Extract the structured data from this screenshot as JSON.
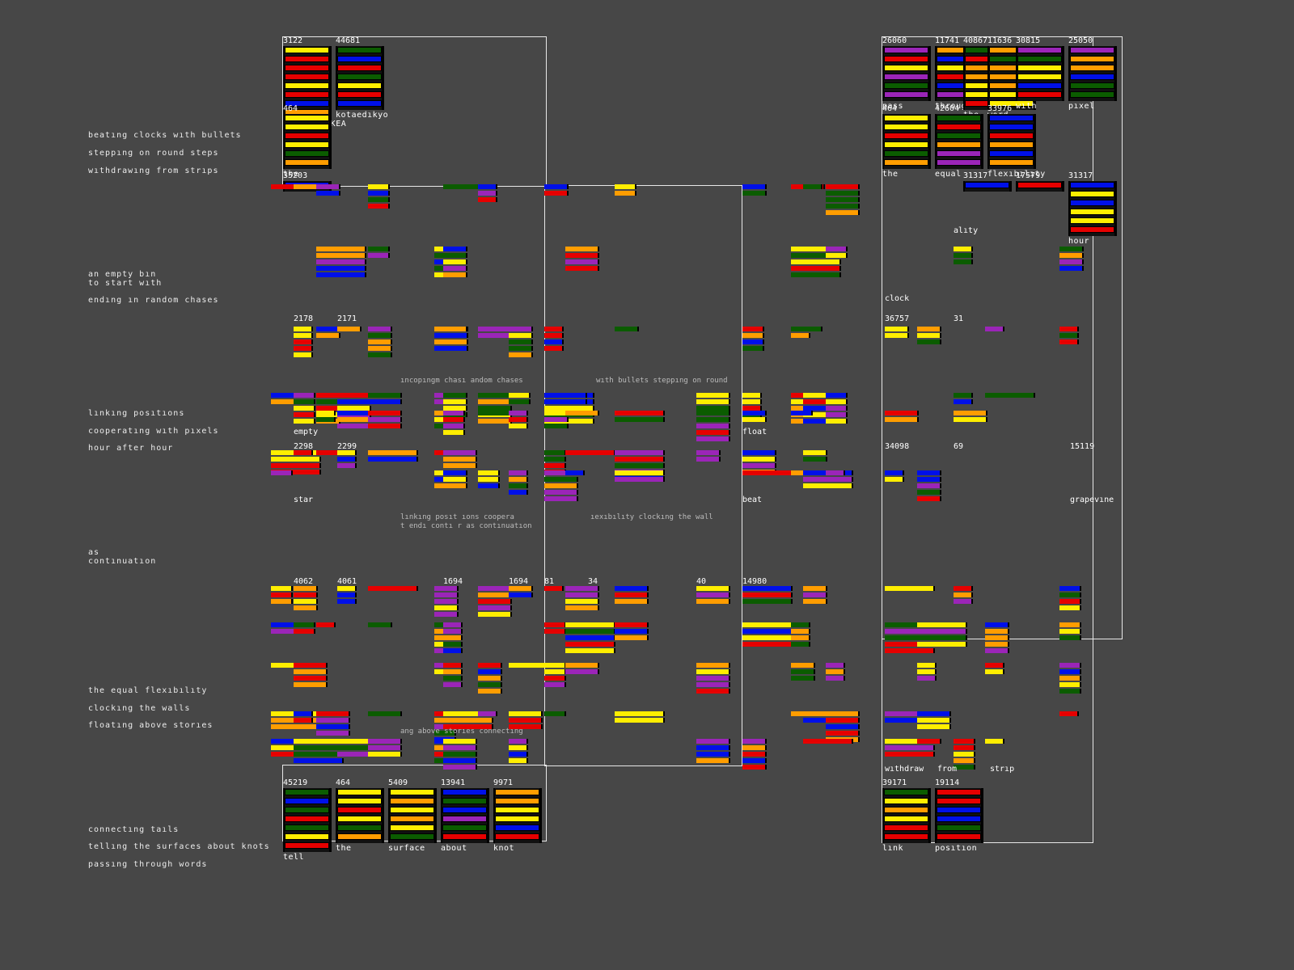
{
  "palette": {
    "y": "#ffee00",
    "r": "#e60000",
    "g": "#0b5c00",
    "b": "#0010e8",
    "p": "#9b25b8",
    "o": "#ff9d00"
  },
  "poem_lines": [
    "beatıng clocks wıth bullets",
    "steppıng on round steps",
    "wıthdrawıng from strıps",
    "an empty bın\nto start wıth",
    "endıng ın random chases",
    "lınkıng posıtıons",
    "cooperatıng wıth pıxels",
    "hour after hour",
    "as\ncontınuatıon",
    "the equal flexıbılıty",
    "clockıng the walls",
    "floatıng above storıes",
    "connectıng taıls",
    "tellıng the surfaces about knots",
    "passıng through words"
  ],
  "cells": [
    {
      "num": "3122",
      "word": "PLAJASELEKEA",
      "bars": "yrrryrbo"
    },
    {
      "num": "44681",
      "word": "kotaedıkyo",
      "bars": "gbrgyrb"
    },
    {
      "num": "464",
      "word": "the",
      "bars": "yyrygo"
    },
    {
      "num": "35203",
      "word": "",
      "bars": "b"
    },
    {
      "num": "45219",
      "word": "tell",
      "bars": "gbgrgyr"
    },
    {
      "num": "464",
      "word": "the",
      "bars": "yyrygo"
    },
    {
      "num": "5409",
      "word": "surface",
      "bars": "yoyoyg"
    },
    {
      "num": "13941",
      "word": "about",
      "bars": "bgbpgr"
    },
    {
      "num": "9971",
      "word": "knot",
      "bars": "ooyybr"
    },
    {
      "num": "26060",
      "word": "pass",
      "bars": "prypgp"
    },
    {
      "num": "11741",
      "word": "through",
      "bars": "obyrbp"
    },
    {
      "num": "40867",
      "word": "the",
      "bars": "grooyyr"
    },
    {
      "num": "11636",
      "word": "word",
      "bars": "ogoooyy"
    },
    {
      "num": "30815",
      "word": "wıth",
      "bars": "pgyybr"
    },
    {
      "num": "25050",
      "word": "pıxel",
      "bars": "poobgg"
    },
    {
      "num": "464",
      "word": "the",
      "bars": "yyrygo"
    },
    {
      "num": "42604",
      "word": "equal",
      "bars": "grgopp"
    },
    {
      "num": "33976",
      "word": "flexıbılıty",
      "bars": "bbrobo"
    },
    {
      "num": "31317",
      "word": "",
      "bars": "b"
    },
    {
      "num": "17579",
      "word": "",
      "bars": "r"
    },
    {
      "num": "31317",
      "word": "hour",
      "bars": "bybyyr"
    },
    {
      "num": "39171",
      "word": "lınk",
      "bars": "gyoyrr"
    },
    {
      "num": "19114",
      "word": "posıtıon",
      "bars": "rrbbgr"
    }
  ],
  "grid_nums": [
    "4062",
    "4061",
    "1694",
    "1694",
    "14980",
    "34",
    "81",
    "40",
    "2178",
    "2171",
    "36757",
    "31",
    "2298",
    "2299",
    "34098",
    "69",
    "15119"
  ],
  "grid_words": [
    "empty",
    "star",
    "beat",
    "clock",
    "float",
    "alıty",
    "grapevıne",
    "wıthdraw",
    "from",
    "strıp"
  ],
  "chunks": [
    "ıncopıngm chası andom chases",
    "wıth bullets steppıng on round",
    "lınkıng posıt ıons coopera",
    "t endı contı r as contınuatıon",
    "ıexıbılıty clockıng the wall",
    "ang above storıes connectıng"
  ]
}
